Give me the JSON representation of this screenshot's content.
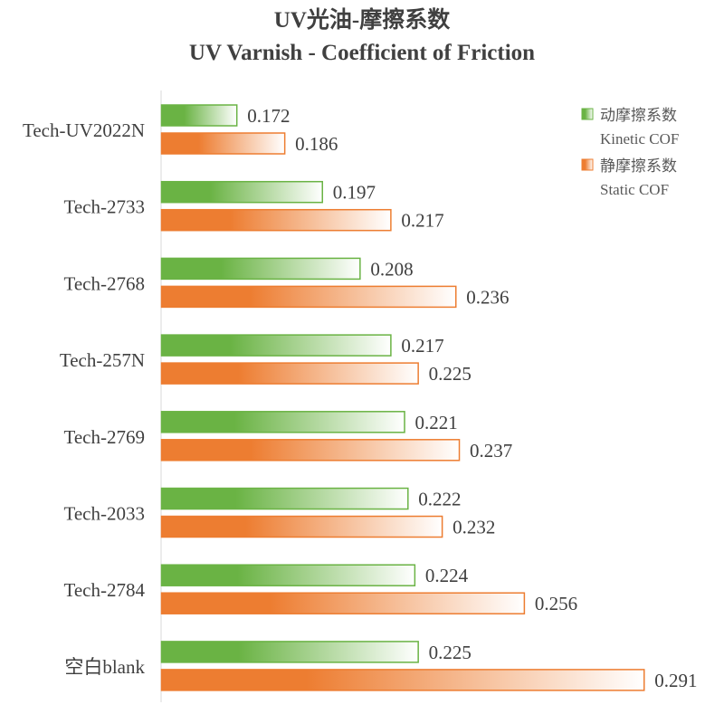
{
  "chart_data": {
    "type": "bar",
    "orientation": "horizontal",
    "title": "UV光油-摩擦系数",
    "subtitle": "UV Varnish - Coefficient of Friction",
    "categories": [
      "Tech-UV2022N",
      "Tech-2733",
      "Tech-2768",
      "Tech-257N",
      "Tech-2769",
      "Tech-2033",
      "Tech-2784",
      "空白blank"
    ],
    "series": [
      {
        "name": "动摩擦系数",
        "name_en": "Kinetic COF",
        "color": "#6ab344",
        "values": [
          0.172,
          0.197,
          0.208,
          0.217,
          0.221,
          0.222,
          0.224,
          0.225
        ]
      },
      {
        "name": "静摩擦系数",
        "name_en": "Static COF",
        "color": "#ed7d31",
        "values": [
          0.186,
          0.217,
          0.236,
          0.225,
          0.237,
          0.232,
          0.256,
          0.291
        ]
      }
    ],
    "xlim": [
      0.15,
      0.3
    ],
    "legend": "top-right",
    "grid": false,
    "data_labels": true
  }
}
